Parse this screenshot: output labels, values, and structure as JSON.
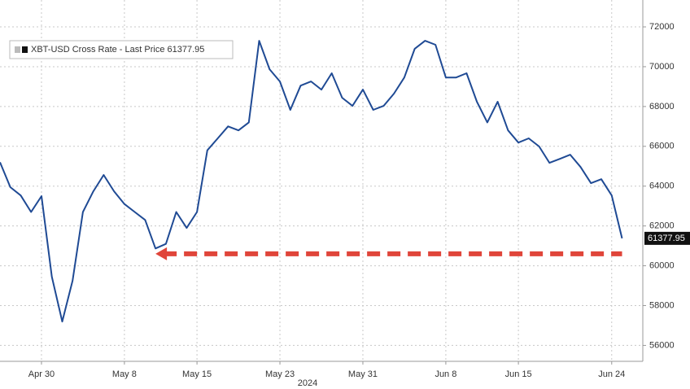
{
  "chart_data": {
    "type": "line",
    "x_label": "2024",
    "x": [
      "2024-04-26",
      "2024-04-27",
      "2024-04-28",
      "2024-04-29",
      "2024-04-30",
      "2024-05-01",
      "2024-05-02",
      "2024-05-03",
      "2024-05-04",
      "2024-05-05",
      "2024-05-06",
      "2024-05-07",
      "2024-05-08",
      "2024-05-09",
      "2024-05-10",
      "2024-05-11",
      "2024-05-12",
      "2024-05-13",
      "2024-05-14",
      "2024-05-15",
      "2024-05-16",
      "2024-05-17",
      "2024-05-18",
      "2024-05-19",
      "2024-05-20",
      "2024-05-21",
      "2024-05-22",
      "2024-05-23",
      "2024-05-24",
      "2024-05-25",
      "2024-05-26",
      "2024-05-27",
      "2024-05-28",
      "2024-05-29",
      "2024-05-30",
      "2024-05-31",
      "2024-06-01",
      "2024-06-02",
      "2024-06-03",
      "2024-06-04",
      "2024-06-05",
      "2024-06-06",
      "2024-06-07",
      "2024-06-08",
      "2024-06-09",
      "2024-06-10",
      "2024-06-11",
      "2024-06-12",
      "2024-06-13",
      "2024-06-14",
      "2024-06-15",
      "2024-06-16",
      "2024-06-17",
      "2024-06-18",
      "2024-06-19",
      "2024-06-20",
      "2024-06-21",
      "2024-06-22",
      "2024-06-23",
      "2024-06-24",
      "2024-06-25"
    ],
    "series": [
      {
        "name": "XBT-USD Cross Rate - Last Price 61377.95",
        "color": "#1f4a94",
        "values": [
          65200,
          63950,
          63530,
          62700,
          63500,
          59450,
          57200,
          59250,
          62700,
          63740,
          64560,
          63740,
          63100,
          62700,
          62300,
          60870,
          61100,
          62700,
          61900,
          62700,
          65800,
          66400,
          67000,
          66800,
          67200,
          71300,
          69870,
          69260,
          67830,
          69050,
          69260,
          68850,
          69670,
          68440,
          68030,
          68850,
          67830,
          68030,
          68650,
          69460,
          70900,
          71300,
          71100,
          69460,
          69460,
          69670,
          68240,
          67200,
          68240,
          66800,
          66190,
          66400,
          65990,
          65170,
          65370,
          65580,
          64960,
          64150,
          64350,
          63530,
          61377.95
        ]
      }
    ],
    "xlim": [
      "2024-04-26",
      "2024-06-27"
    ],
    "xticks": [
      {
        "value": "2024-04-30",
        "label": "Apr 30"
      },
      {
        "value": "2024-05-08",
        "label": "May 8"
      },
      {
        "value": "2024-05-15",
        "label": "May 15"
      },
      {
        "value": "2024-05-23",
        "label": "May 23"
      },
      {
        "value": "2024-05-31",
        "label": "May 31"
      },
      {
        "value": "2024-06-08",
        "label": "Jun 8"
      },
      {
        "value": "2024-06-15",
        "label": "Jun 15"
      },
      {
        "value": "2024-06-24",
        "label": "Jun 24"
      }
    ],
    "ylim": [
      55200,
      73350
    ],
    "yticks": [
      56000,
      58000,
      60000,
      62000,
      64000,
      66000,
      68000,
      70000,
      72000
    ],
    "grid": true,
    "reference_line": {
      "value": 60600,
      "x_from": "2024-05-11",
      "x_to": "2024-06-25",
      "color": "#e0453a"
    }
  }
}
